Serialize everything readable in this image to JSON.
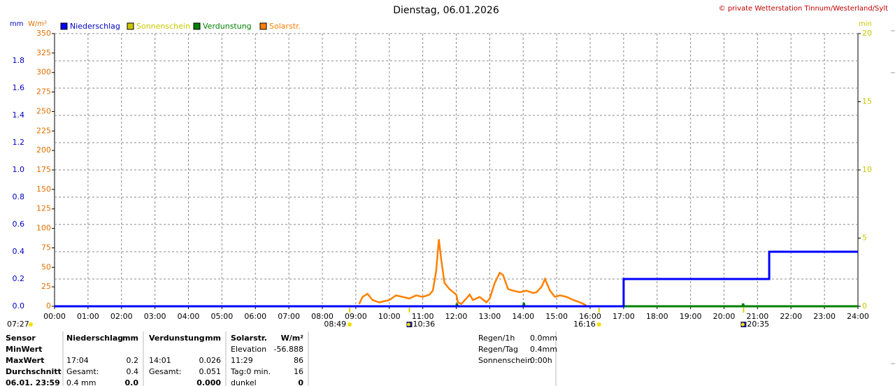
{
  "chart_data": {
    "type": "line",
    "title": "Dienstag, 06.01.2026",
    "copyright": "© private Wetterstation Tinnum/Westerland/Sylt",
    "ylabel": "mm",
    "y2label": "W/m²",
    "y3label": "min",
    "xlim": [
      0,
      24
    ],
    "xticks": [
      {
        "value": 0,
        "label": "00:00"
      },
      {
        "value": 1,
        "label": "01:00"
      },
      {
        "value": 2,
        "label": "02:00"
      },
      {
        "value": 3,
        "label": "03:00"
      },
      {
        "value": 4,
        "label": "04:00"
      },
      {
        "value": 5,
        "label": "05:00"
      },
      {
        "value": 6,
        "label": "06:00"
      },
      {
        "value": 7,
        "label": "07:00"
      },
      {
        "value": 8,
        "label": "08:00"
      },
      {
        "value": 9,
        "label": "09:00"
      },
      {
        "value": 10,
        "label": "10:00"
      },
      {
        "value": 11,
        "label": "11:00"
      },
      {
        "value": 12,
        "label": "12:00"
      },
      {
        "value": 13,
        "label": "13:00"
      },
      {
        "value": 14,
        "label": "14:00"
      },
      {
        "value": 15,
        "label": "15:00"
      },
      {
        "value": 16,
        "label": "16:00"
      },
      {
        "value": 17,
        "label": "17:00"
      },
      {
        "value": 18,
        "label": "18:00"
      },
      {
        "value": 19,
        "label": "19:00"
      },
      {
        "value": 20,
        "label": "20:00"
      },
      {
        "value": 21,
        "label": "21:00"
      },
      {
        "value": 22,
        "label": "22:00"
      },
      {
        "value": 23,
        "label": "23:00"
      },
      {
        "value": 24,
        "label": "24:00"
      }
    ],
    "ylim": [
      0,
      2.0
    ],
    "yticks": [
      {
        "value": 0,
        "label": "0.0"
      },
      {
        "value": 0.2,
        "label": "0.2"
      },
      {
        "value": 0.4,
        "label": "0.4"
      },
      {
        "value": 0.6,
        "label": "0.6"
      },
      {
        "value": 0.8,
        "label": "0.8"
      },
      {
        "value": 1.0,
        "label": "1.0"
      },
      {
        "value": 1.2,
        "label": "1.2"
      },
      {
        "value": 1.4,
        "label": "1.4"
      },
      {
        "value": 1.6,
        "label": "1.6"
      },
      {
        "value": 1.8,
        "label": "1.8"
      }
    ],
    "y2lim": [
      0,
      350
    ],
    "y2ticks": [
      0,
      25,
      50,
      75,
      100,
      125,
      150,
      175,
      200,
      225,
      250,
      275,
      300,
      325,
      350
    ],
    "y3lim": [
      0,
      20
    ],
    "y3ticks": [
      0,
      5,
      10,
      15,
      20
    ],
    "grid": true,
    "series": [
      {
        "name": "Niederschlag",
        "color": "#0000ff",
        "axis": "y",
        "x": [
          0,
          17.0,
          17.0,
          21.35,
          21.35,
          24
        ],
        "values": [
          0,
          0,
          0.2,
          0.2,
          0.4,
          0.4
        ]
      },
      {
        "name": "Sonnenschein",
        "color": "#c8c800",
        "axis": "y3",
        "x": [],
        "values": []
      },
      {
        "name": "Verdunstung",
        "color": "#008000",
        "axis": "y",
        "x": [
          12,
          12.02,
          12.04,
          14.0,
          14.02,
          14.04,
          20.55,
          20.57,
          20.59,
          24
        ],
        "values": [
          0,
          0.02,
          0,
          0,
          0.026,
          0,
          0,
          0.02,
          0,
          0
        ]
      },
      {
        "name": "Solarstr.",
        "color": "#ff8000",
        "axis": "y2",
        "x": [
          9.1,
          9.2,
          9.35,
          9.5,
          9.7,
          10.0,
          10.2,
          10.4,
          10.6,
          10.8,
          11.0,
          11.2,
          11.3,
          11.4,
          11.48,
          11.55,
          11.65,
          11.8,
          12.0,
          12.05,
          12.15,
          12.3,
          12.4,
          12.5,
          12.7,
          12.9,
          13.0,
          13.15,
          13.3,
          13.4,
          13.55,
          13.7,
          13.9,
          14.1,
          14.3,
          14.4,
          14.55,
          14.65,
          14.8,
          14.95,
          15.1,
          15.3,
          15.5,
          15.7,
          15.85,
          15.9
        ],
        "values": [
          3,
          12,
          16,
          8,
          5,
          8,
          14,
          12,
          10,
          14,
          12,
          15,
          20,
          45,
          86,
          60,
          30,
          22,
          15,
          5,
          3,
          10,
          15,
          8,
          12,
          5,
          10,
          30,
          43,
          40,
          22,
          20,
          18,
          20,
          17,
          18,
          25,
          35,
          20,
          12,
          14,
          12,
          8,
          5,
          2,
          0
        ]
      }
    ],
    "markers": [
      {
        "x": 8.817,
        "label": "08:49",
        "icon": "sun"
      },
      {
        "x": 10.6,
        "label": "10:36",
        "icon": "moon"
      },
      {
        "x": 16.267,
        "label": "16:16",
        "icon": "sun"
      },
      {
        "x": 20.583,
        "label": "20:35",
        "icon": "moon"
      }
    ],
    "corner_marker": "07:27"
  },
  "table": {
    "rows": [
      [
        "Sensor",
        "Niederschlag",
        "mm",
        "Verdunstung",
        "mm",
        "Solarstr.",
        "W/m²"
      ],
      [
        "MinWert",
        null,
        null,
        null,
        null,
        "Elevation",
        "-56.888"
      ],
      [
        "MaxWert",
        "17:04",
        "0.2",
        "14:01",
        "0.026",
        "11:29",
        "86"
      ],
      [
        "Durchschnitt",
        "Gesamt:",
        "0.4",
        "Gesamt:",
        "0.051",
        "Tag:0 min.",
        "16"
      ],
      [
        "06.01. 23:59",
        "0.4 mm",
        "0.0",
        null,
        "0.000",
        "dunkel",
        "0"
      ]
    ]
  },
  "summary": [
    [
      "Regen/1h",
      "0.0mm"
    ],
    [
      "Regen/Tag",
      "0.4mm"
    ],
    [
      "Sonnenschein",
      "0:00h"
    ]
  ]
}
